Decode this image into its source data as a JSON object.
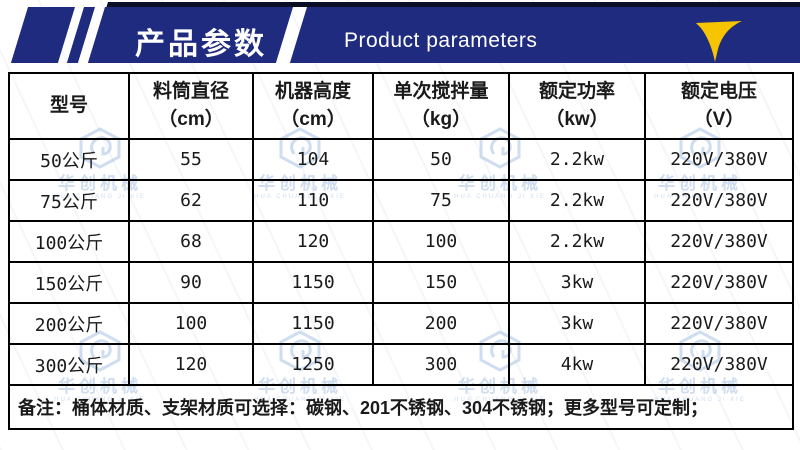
{
  "header": {
    "title_cn": "产品参数",
    "title_en": "Product parameters"
  },
  "icons": {
    "arrow": "down-swoosh-arrow",
    "logo": "hexagon-brand-logo"
  },
  "colors": {
    "banner_blue": "#1f2b7e",
    "banner_dark_edge": "#0a0f26",
    "arrow_yellow": "#f6c400",
    "watermark_blue": "#a9c2e4",
    "table_border": "#000000"
  },
  "table": {
    "columns": [
      {
        "name": "型号",
        "unit": ""
      },
      {
        "name": "料筒直径",
        "unit": "（cm）"
      },
      {
        "name": "机器高度",
        "unit": "（cm）"
      },
      {
        "name": "单次搅拌量",
        "unit": "（kg）"
      },
      {
        "name": "额定功率",
        "unit": "（kw）"
      },
      {
        "name": "额定电压",
        "unit": "（V）"
      }
    ],
    "rows": [
      [
        "50公斤",
        "55",
        "104",
        "50",
        "2.2kw",
        "220V/380V"
      ],
      [
        "75公斤",
        "62",
        "110",
        "75",
        "2.2kw",
        "220V/380V"
      ],
      [
        "100公斤",
        "68",
        "120",
        "100",
        "2.2kw",
        "220V/380V"
      ],
      [
        "150公斤",
        "90",
        "1150",
        "150",
        "3kw",
        "220V/380V"
      ],
      [
        "200公斤",
        "100",
        "1150",
        "200",
        "3kw",
        "220V/380V"
      ],
      [
        "300公斤",
        "120",
        "1250",
        "300",
        "4kw",
        "220V/380V"
      ]
    ],
    "note": "备注：桶体材质、支架材质可选择：碳钢、201不锈钢、304不锈钢；更多型号可定制；"
  },
  "watermark": {
    "brand_cn": "华创机械",
    "brand_en": "HUA CHUANG JI XIE"
  }
}
